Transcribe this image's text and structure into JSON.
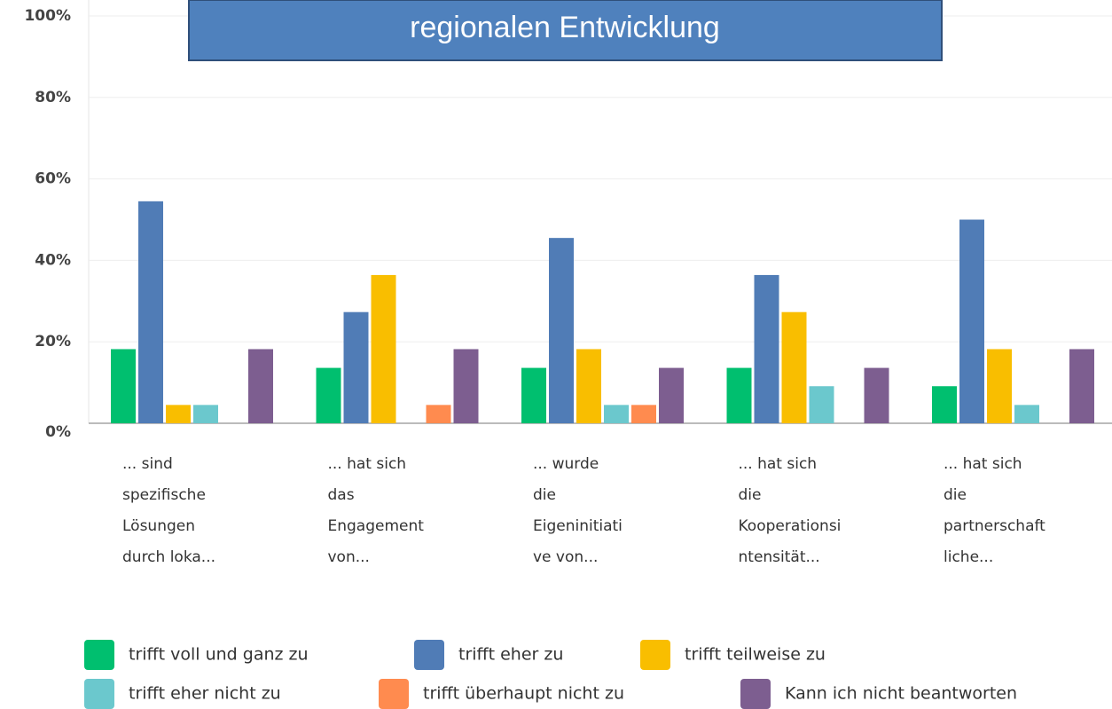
{
  "chart_data": {
    "type": "bar",
    "title": "regionalen Entwicklung",
    "categories": [
      [
        "... sind",
        "spezifische",
        "Lösungen",
        "durch loka..."
      ],
      [
        "... hat sich",
        "das",
        "Engagement",
        "von..."
      ],
      [
        "... wurde",
        "die",
        "Eigeninitiati",
        "ve von..."
      ],
      [
        "... hat sich",
        "die",
        "Kooperationsi",
        "ntensität..."
      ],
      [
        "... hat sich",
        "die",
        "partnerschaft",
        "liche..."
      ]
    ],
    "series": [
      {
        "name": "trifft voll und ganz zu",
        "color": "#00bf6f",
        "values": [
          18.2,
          13.6,
          13.6,
          13.6,
          9.1
        ]
      },
      {
        "name": "trifft eher zu",
        "color": "#507cb6",
        "values": [
          54.5,
          27.3,
          45.5,
          36.4,
          50
        ]
      },
      {
        "name": "trifft teilweise zu",
        "color": "#f9be00",
        "values": [
          4.5,
          36.4,
          18.2,
          27.3,
          18.2
        ]
      },
      {
        "name": "trifft eher nicht zu",
        "color": "#6bc8cd",
        "values": [
          4.5,
          0,
          4.5,
          9.1,
          4.5
        ]
      },
      {
        "name": "trifft überhaupt nicht zu",
        "color": "#ff8b4f",
        "values": [
          0,
          4.5,
          4.5,
          0,
          0
        ]
      },
      {
        "name": "Kann ich nicht beantworten",
        "color": "#7d5e90",
        "values": [
          18.2,
          18.2,
          13.6,
          13.6,
          18.2
        ]
      }
    ],
    "ylim": [
      0,
      100
    ],
    "yticks": [
      {
        "value": 0,
        "label": "0%"
      },
      {
        "value": 20,
        "label": "20%"
      },
      {
        "value": 40,
        "label": "40%"
      },
      {
        "value": 60,
        "label": "60%"
      },
      {
        "value": 80,
        "label": "80%"
      },
      {
        "value": 100,
        "label": "100%"
      }
    ],
    "grid": true
  }
}
